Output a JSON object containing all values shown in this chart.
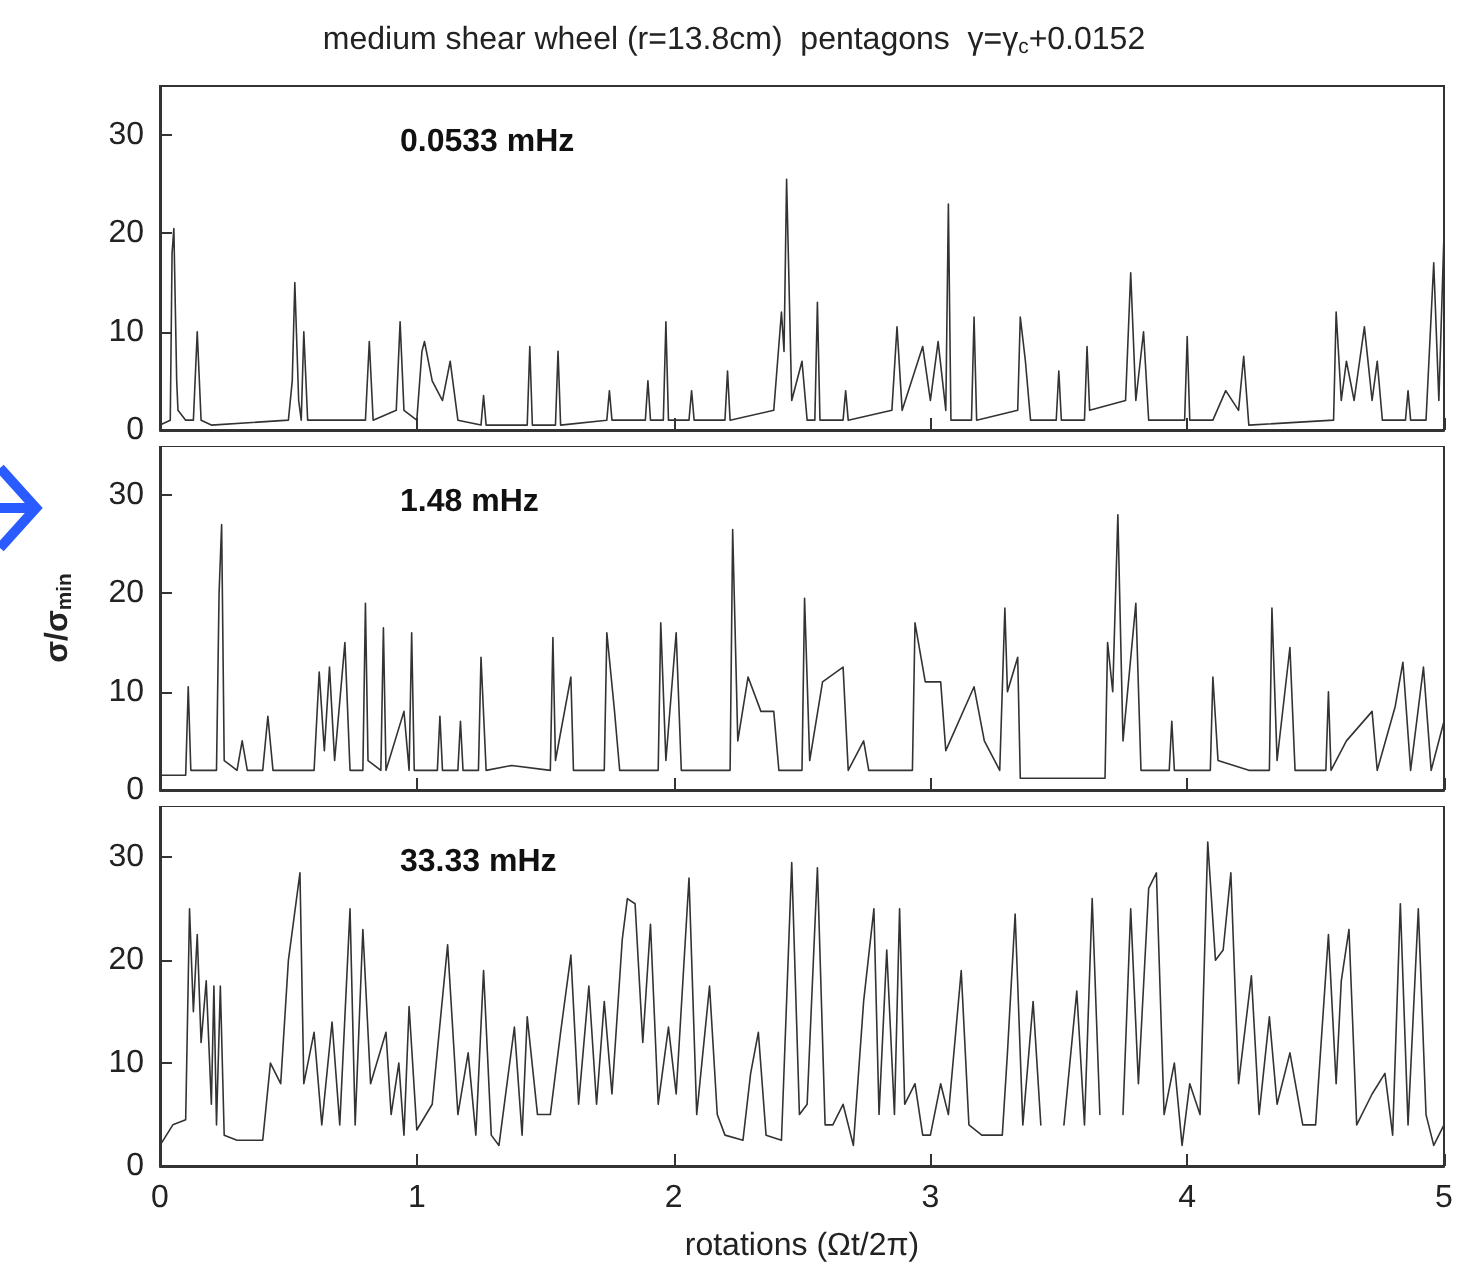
{
  "chart_data": [
    {
      "type": "line",
      "title": "medium shear wheel (r=13.8cm)  pentagons  γ=γ$_{c}$+0.0152",
      "annotations": [
        "0.0533 mHz"
      ],
      "xlim": [
        0,
        5
      ],
      "xticks": [
        0,
        1,
        2,
        3,
        4,
        5
      ],
      "ylim": [
        0,
        35
      ],
      "yticks": [
        0,
        10,
        20,
        30
      ],
      "tick_labels": "y",
      "marker": "none",
      "line_style": "solid",
      "series": [
        {
          "color": "#333333",
          "x": [
            0,
            0.04,
            0.047,
            0.054,
            0.065,
            0.07,
            0.1,
            0.13,
            0.145,
            0.16,
            0.2,
            0.5,
            0.515,
            0.525,
            0.54,
            0.55,
            0.56,
            0.575,
            0.8,
            0.815,
            0.83,
            0.92,
            0.935,
            0.95,
            1.0,
            1.02,
            1.03,
            1.06,
            1.1,
            1.13,
            1.16,
            1.25,
            1.26,
            1.27,
            1.43,
            1.44,
            1.45,
            1.54,
            1.55,
            1.56,
            1.74,
            1.75,
            1.76,
            1.89,
            1.9,
            1.91,
            1.96,
            1.97,
            1.98,
            2.06,
            2.07,
            2.08,
            2.2,
            2.21,
            2.22,
            2.39,
            2.42,
            2.43,
            2.44,
            2.46,
            2.5,
            2.52,
            2.55,
            2.56,
            2.57,
            2.66,
            2.67,
            2.68,
            2.85,
            2.87,
            2.89,
            2.97,
            3.0,
            3.03,
            3.06,
            3.07,
            3.08,
            3.16,
            3.17,
            3.18,
            3.34,
            3.35,
            3.37,
            3.39,
            3.49,
            3.5,
            3.51,
            3.6,
            3.61,
            3.62,
            3.76,
            3.78,
            3.8,
            3.83,
            3.85,
            3.99,
            4.0,
            4.01,
            4.1,
            4.15,
            4.2,
            4.22,
            4.24,
            4.57,
            4.58,
            4.6,
            4.62,
            4.65,
            4.69,
            4.72,
            4.74,
            4.76,
            4.85,
            4.86,
            4.87,
            4.93,
            4.96,
            4.98,
            5.0
          ],
          "values": [
            0.5,
            1,
            18,
            20.5,
            5,
            2,
            1,
            1,
            10,
            1,
            0.5,
            1,
            5,
            15,
            3,
            1,
            10,
            1,
            1,
            9,
            1,
            2,
            11,
            2,
            1,
            8,
            9,
            5,
            3,
            7,
            1,
            0.5,
            3.5,
            0.5,
            0.5,
            8.5,
            0.5,
            0.5,
            8,
            0.5,
            1,
            4,
            1,
            1,
            5,
            1,
            1,
            11,
            1,
            1,
            4,
            1,
            1,
            6,
            1,
            2,
            12,
            8,
            25.5,
            3,
            7,
            1,
            1,
            13,
            1,
            1,
            4,
            1,
            2,
            10.5,
            2,
            8.5,
            3,
            9,
            2,
            23,
            1,
            1,
            11.5,
            1,
            2,
            11.5,
            7,
            1,
            1,
            6,
            1,
            1,
            8.5,
            2,
            3,
            16,
            3,
            10,
            1,
            1,
            9.5,
            1,
            1,
            4,
            2,
            7.5,
            0.5,
            1,
            12,
            3,
            7,
            3,
            10.5,
            3,
            7,
            1,
            1,
            4,
            1,
            1,
            17,
            3,
            20
          ]
        }
      ]
    },
    {
      "type": "line",
      "ylabel": "σ/σ$_{min}$",
      "annotations": [
        "1.48 mHz"
      ],
      "xlim": [
        0,
        5
      ],
      "xticks": [
        0,
        1,
        2,
        3,
        4,
        5
      ],
      "ylim": [
        0,
        35
      ],
      "yticks": [
        0,
        10,
        20,
        30
      ],
      "tick_labels": "y",
      "marker": "none",
      "line_style": "solid",
      "series": [
        {
          "color": "#333333",
          "x": [
            0,
            0.1,
            0.11,
            0.12,
            0.22,
            0.23,
            0.24,
            0.25,
            0.3,
            0.32,
            0.34,
            0.4,
            0.42,
            0.44,
            0.6,
            0.62,
            0.64,
            0.66,
            0.68,
            0.72,
            0.74,
            0.79,
            0.8,
            0.81,
            0.86,
            0.87,
            0.88,
            0.95,
            0.97,
            0.98,
            0.99,
            1.08,
            1.09,
            1.1,
            1.16,
            1.17,
            1.18,
            1.24,
            1.25,
            1.27,
            1.37,
            1.52,
            1.53,
            1.54,
            1.6,
            1.61,
            1.73,
            1.74,
            1.77,
            1.79,
            1.94,
            1.95,
            1.97,
            2.01,
            2.03,
            2.22,
            2.23,
            2.25,
            2.29,
            2.34,
            2.39,
            2.41,
            2.5,
            2.51,
            2.53,
            2.58,
            2.66,
            2.68,
            2.74,
            2.76,
            2.93,
            2.94,
            2.98,
            3.04,
            3.06,
            3.17,
            3.21,
            3.27,
            3.29,
            3.3,
            3.34,
            3.35,
            3.68,
            3.69,
            3.71,
            3.73,
            3.75,
            3.8,
            3.82,
            3.93,
            3.94,
            3.95,
            4.09,
            4.1,
            4.12,
            4.24,
            4.32,
            4.33,
            4.35,
            4.4,
            4.42,
            4.54,
            4.55,
            4.56,
            4.62,
            4.72,
            4.74,
            4.81,
            4.84,
            4.87,
            4.92,
            4.95,
            5.0
          ],
          "values": [
            1.5,
            1.5,
            10.5,
            2,
            2,
            20,
            27,
            3,
            2,
            5,
            2,
            2,
            7.5,
            2,
            2,
            12,
            4,
            12.5,
            3,
            15,
            2,
            2,
            19,
            3,
            2,
            16.5,
            2,
            8,
            2,
            16,
            2,
            2,
            7.5,
            2,
            2,
            7,
            2,
            2,
            13.5,
            2,
            2.5,
            2,
            15.5,
            3,
            11.5,
            2,
            2,
            16,
            8,
            2,
            2,
            17,
            3,
            16,
            2,
            2,
            26.5,
            5,
            11.5,
            8,
            8,
            2,
            2,
            19.5,
            3,
            11,
            12.5,
            2,
            5,
            2,
            2,
            17,
            11,
            11,
            4,
            10.5,
            5,
            2,
            18.5,
            10,
            13.5,
            1.2,
            1.2,
            15,
            10,
            28,
            5,
            19,
            2,
            2,
            7,
            2,
            2,
            11.5,
            3,
            2,
            2,
            18.5,
            3,
            14.5,
            2,
            2,
            10,
            2,
            5,
            8,
            2,
            8.5,
            13,
            2,
            12.5,
            2,
            7
          ]
        }
      ]
    },
    {
      "type": "line",
      "xlabel": "rotations (Ωt/2π)",
      "annotations": [
        "33.33 mHz"
      ],
      "xlim": [
        0,
        5
      ],
      "xticks": [
        0,
        1,
        2,
        3,
        4,
        5
      ],
      "ylim": [
        0,
        35
      ],
      "yticks": [
        0,
        10,
        20,
        30
      ],
      "marker": "none",
      "line_style": "solid",
      "series": [
        {
          "color": "#333333",
          "x": [
            0,
            0.05,
            0.1,
            0.115,
            0.13,
            0.145,
            0.16,
            0.18,
            0.2,
            0.21,
            0.22,
            0.235,
            0.25,
            0.3,
            0.4,
            0.43,
            0.47,
            0.5,
            0.545,
            0.56,
            0.6,
            0.63,
            0.67,
            0.7,
            0.74,
            0.76,
            0.79,
            0.82,
            0.88,
            0.9,
            0.93,
            0.95,
            0.97,
            1.0,
            1.06,
            1.12,
            1.16,
            1.2,
            1.23,
            1.26,
            1.29,
            1.32,
            1.38,
            1.41,
            1.43,
            1.47,
            1.52,
            1.56,
            1.6,
            1.63,
            1.67,
            1.7,
            1.73,
            1.76,
            1.8,
            1.82,
            1.85,
            1.88,
            1.91,
            1.94,
            1.98,
            2.01,
            2.06,
            2.09,
            2.14,
            2.17,
            2.2,
            2.27,
            2.3,
            2.33,
            2.36,
            2.42,
            2.46,
            2.49,
            2.52,
            2.56,
            2.59,
            2.62,
            2.66,
            2.7,
            2.74,
            2.78,
            2.8,
            2.83,
            2.86,
            2.88,
            2.9,
            2.94,
            2.97,
            3.0,
            3.04,
            3.07,
            3.12,
            3.15,
            3.2,
            3.28,
            3.3,
            3.33,
            3.36,
            3.4,
            3.43,
            3.5,
            3.52,
            3.57,
            3.6,
            3.63,
            3.66,
            3.72,
            3.75,
            3.78,
            3.81,
            3.85,
            3.88,
            3.91,
            3.95,
            3.98,
            4.01,
            4.05,
            4.08,
            4.11,
            4.14,
            4.17,
            4.2,
            4.25,
            4.28,
            4.32,
            4.35,
            4.4,
            4.45,
            4.5,
            4.55,
            4.58,
            4.6,
            4.63,
            4.66,
            4.72,
            4.77,
            4.8,
            4.83,
            4.86,
            4.9,
            4.93,
            4.96,
            5.0
          ],
          "values": [
            2,
            4,
            4.5,
            25,
            15,
            22.5,
            12,
            18,
            6,
            17.5,
            4,
            17.5,
            3,
            2.5,
            2.5,
            10,
            8,
            20,
            28.5,
            8,
            13,
            4,
            14,
            4,
            25,
            4,
            23,
            8,
            13,
            5,
            10,
            3,
            15.5,
            3.5,
            6,
            21.5,
            5,
            11,
            3,
            19,
            3,
            2,
            13.5,
            3,
            14.5,
            5,
            5,
            13,
            20.5,
            6,
            17.5,
            6,
            16,
            7,
            22,
            26,
            25.5,
            12,
            23.5,
            6,
            13.5,
            7,
            28,
            5,
            17.5,
            5,
            3,
            2.5,
            9,
            13,
            3,
            2.5,
            29.5,
            5,
            6,
            29,
            4,
            4,
            6,
            2,
            16,
            25,
            5,
            21,
            5,
            25,
            6,
            8,
            3,
            3,
            8,
            5,
            19,
            4,
            3,
            3,
            11,
            24.5,
            4,
            16,
            4,
            null,
            4,
            17,
            4,
            26,
            5,
            null,
            5,
            25,
            8,
            27,
            28.5,
            5,
            10,
            2,
            8,
            5,
            31.5,
            20,
            21,
            28.5,
            8,
            18.5,
            5,
            14.5,
            6,
            11,
            4,
            4,
            22.5,
            8,
            18,
            23,
            4,
            7,
            9,
            3,
            25.5,
            4,
            25,
            5,
            2,
            4
          ]
        }
      ]
    }
  ]
}
